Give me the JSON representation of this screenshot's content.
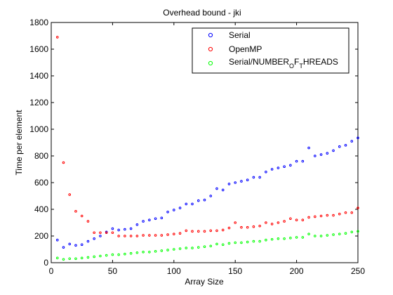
{
  "chart_data": {
    "type": "scatter",
    "title": "Overhead bound - jki",
    "xlabel": "Array Size",
    "ylabel": "Time per element",
    "xlim": [
      0,
      250
    ],
    "ylim": [
      0,
      1800
    ],
    "xticks": [
      0,
      50,
      100,
      150,
      200,
      250
    ],
    "yticks": [
      0,
      200,
      400,
      600,
      800,
      1000,
      1200,
      1400,
      1600,
      1800
    ],
    "grid": false,
    "legend_position": "top-right",
    "x": [
      5,
      10,
      15,
      20,
      25,
      30,
      35,
      40,
      45,
      50,
      55,
      60,
      65,
      70,
      75,
      80,
      85,
      90,
      95,
      100,
      105,
      110,
      115,
      120,
      125,
      130,
      135,
      140,
      145,
      150,
      155,
      160,
      165,
      170,
      175,
      180,
      185,
      190,
      195,
      200,
      205,
      210,
      215,
      220,
      225,
      230,
      235,
      240,
      245,
      250
    ],
    "series": [
      {
        "name": "Serial",
        "color": "#0000ff",
        "values": [
          170,
          115,
          140,
          130,
          135,
          160,
          180,
          200,
          230,
          255,
          245,
          250,
          255,
          285,
          310,
          320,
          330,
          335,
          380,
          395,
          410,
          440,
          440,
          465,
          470,
          500,
          555,
          545,
          590,
          600,
          610,
          620,
          640,
          640,
          680,
          700,
          710,
          720,
          730,
          760,
          760,
          860,
          800,
          810,
          820,
          840,
          870,
          880,
          910,
          935
        ]
      },
      {
        "name": "OpenMP",
        "color": "#ff0000",
        "values": [
          1690,
          750,
          510,
          385,
          350,
          310,
          225,
          225,
          225,
          225,
          200,
          200,
          200,
          200,
          205,
          205,
          205,
          205,
          210,
          215,
          220,
          240,
          235,
          235,
          235,
          240,
          240,
          245,
          260,
          300,
          265,
          265,
          270,
          275,
          300,
          290,
          300,
          310,
          330,
          320,
          320,
          340,
          345,
          350,
          355,
          355,
          365,
          375,
          375,
          410
        ]
      },
      {
        "name": "Serial/NUMBER_OF_THREADS",
        "color": "#00ff00",
        "values": [
          35,
          25,
          30,
          30,
          35,
          40,
          45,
          50,
          55,
          60,
          60,
          65,
          70,
          75,
          80,
          80,
          85,
          90,
          95,
          100,
          105,
          110,
          110,
          115,
          120,
          125,
          140,
          135,
          145,
          150,
          150,
          155,
          160,
          160,
          170,
          175,
          180,
          180,
          185,
          190,
          190,
          215,
          200,
          200,
          205,
          210,
          215,
          220,
          230,
          235
        ]
      }
    ]
  },
  "legend_label_parts": {
    "openmp_prefix": "Serial/NUMBER",
    "sub1": "O",
    "mid1": "F",
    "sub2": "T",
    "suffix": "HREADS"
  }
}
